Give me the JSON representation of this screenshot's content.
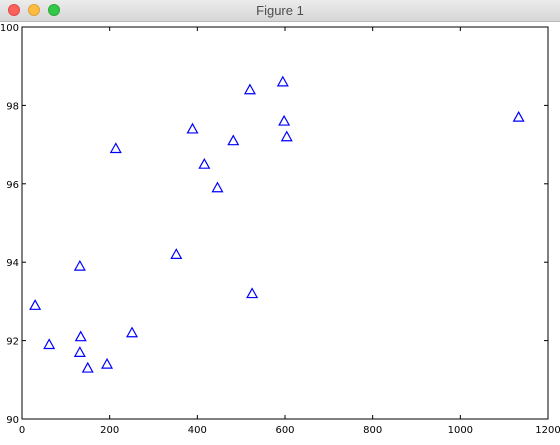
{
  "window": {
    "title": "Figure 1"
  },
  "chart_data": {
    "type": "scatter",
    "marker": "triangle",
    "marker_color": "#0000ff",
    "xlim": [
      0,
      1200
    ],
    "ylim": [
      90,
      100
    ],
    "xticks": [
      0,
      200,
      400,
      600,
      800,
      1000,
      1200
    ],
    "yticks": [
      90,
      92,
      94,
      96,
      98,
      100
    ],
    "grid": false,
    "points": [
      {
        "x": 30,
        "y": 92.9
      },
      {
        "x": 62,
        "y": 91.9
      },
      {
        "x": 132,
        "y": 93.9
      },
      {
        "x": 132,
        "y": 91.7
      },
      {
        "x": 134,
        "y": 92.1
      },
      {
        "x": 150,
        "y": 91.3
      },
      {
        "x": 194,
        "y": 91.4
      },
      {
        "x": 214,
        "y": 96.9
      },
      {
        "x": 251,
        "y": 92.2
      },
      {
        "x": 352,
        "y": 94.2
      },
      {
        "x": 389,
        "y": 97.4
      },
      {
        "x": 416,
        "y": 96.5
      },
      {
        "x": 446,
        "y": 95.9
      },
      {
        "x": 482,
        "y": 97.1
      },
      {
        "x": 520,
        "y": 98.4
      },
      {
        "x": 525,
        "y": 93.2
      },
      {
        "x": 595,
        "y": 98.6
      },
      {
        "x": 598,
        "y": 97.6
      },
      {
        "x": 604,
        "y": 97.2
      },
      {
        "x": 1133,
        "y": 97.7
      }
    ]
  }
}
